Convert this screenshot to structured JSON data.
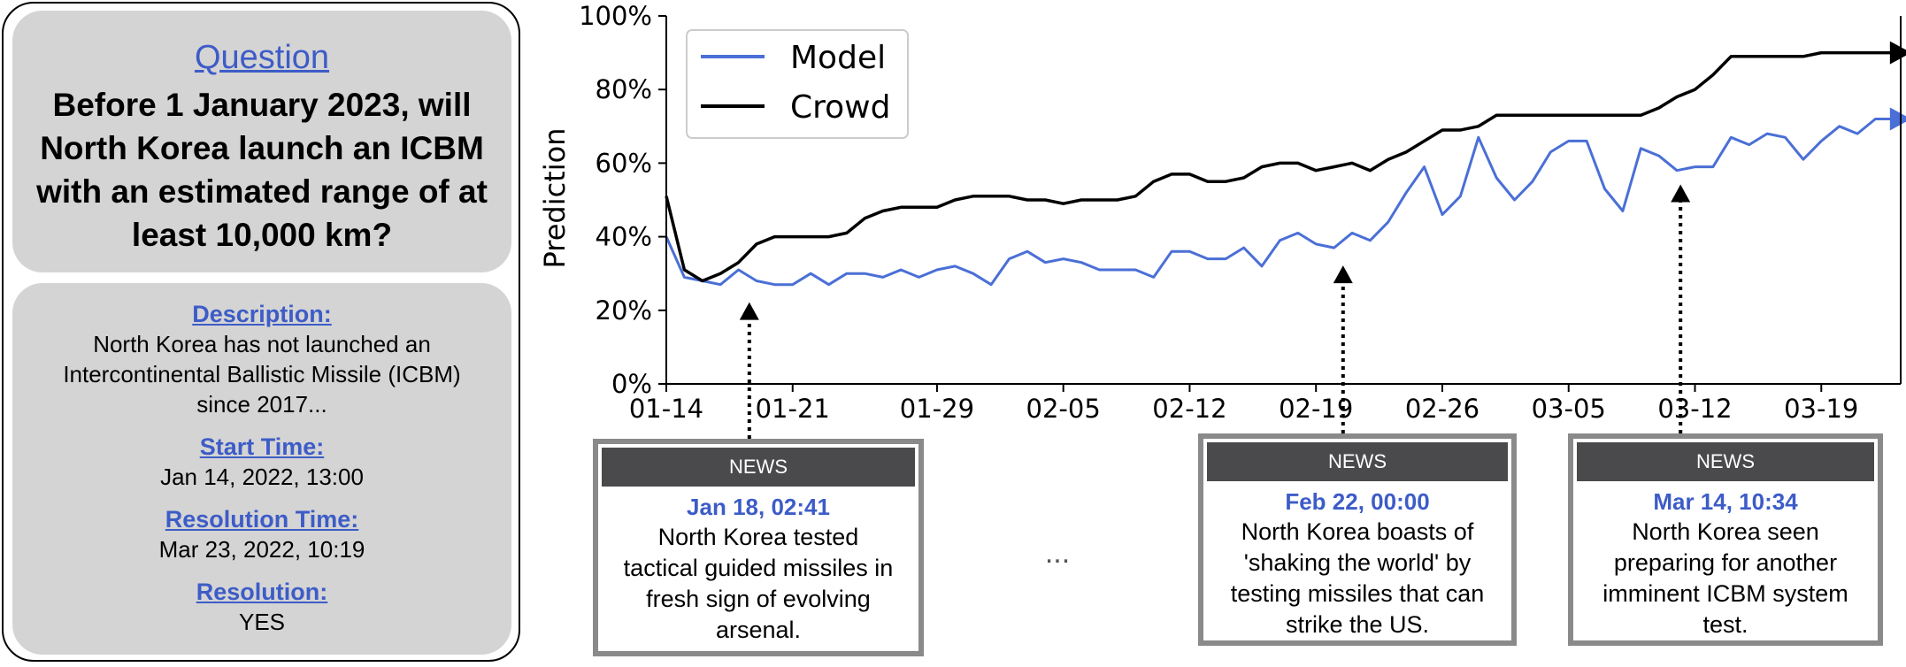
{
  "question": {
    "heading": "Question",
    "text": "Before 1 January 2023, will North Korea launch an ICBM with an estimated range of at least 10,000 km?"
  },
  "details": {
    "description_label": "Description:",
    "description": "North Korea has not launched an Intercontinental Ballistic Missile (ICBM) since 2017...",
    "start_label": "Start Time:",
    "start": "Jan 14, 2022, 13:00",
    "resolution_time_label": "Resolution Time:",
    "resolution_time": "Mar 23, 2022, 10:19",
    "resolution_label": "Resolution:",
    "resolution": "YES"
  },
  "news": [
    {
      "header": "NEWS",
      "time": "Jan 18, 02:41",
      "headline": "North Korea tested tactical guided missiles in fresh sign of evolving arsenal."
    },
    {
      "header": "NEWS",
      "time": "Feb 22, 00:00",
      "headline": "North Korea boasts of 'shaking the world' by testing missiles that can strike the US."
    },
    {
      "header": "NEWS",
      "time": "Mar 14, 10:34",
      "headline": "North Korea seen preparing for another imminent ICBM system test."
    }
  ],
  "news_ellipsis": "...",
  "chart_data": {
    "type": "line",
    "ylabel": "Prediction",
    "xlabel": "",
    "x_ticks": [
      "01-14",
      "01-21",
      "01-29",
      "02-05",
      "02-12",
      "02-19",
      "02-26",
      "03-05",
      "03-12",
      "03-19"
    ],
    "x_tick_days": [
      0,
      7,
      15,
      22,
      29,
      36,
      43,
      50,
      57,
      64
    ],
    "y_ticks": [
      "0%",
      "20%",
      "40%",
      "60%",
      "80%",
      "100%"
    ],
    "ylim": [
      0,
      100
    ],
    "xlim_days": [
      0,
      68.4
    ],
    "legend_position": "top-left",
    "news_marker_days": [
      4.6,
      37.5,
      56.2
    ],
    "series": [
      {
        "name": "Model",
        "color": "#4a6fd6",
        "x": [
          0,
          1,
          2,
          3,
          4,
          5,
          6,
          7,
          8,
          9,
          10,
          11,
          12,
          13,
          14,
          15,
          16,
          17,
          18,
          19,
          20,
          21,
          22,
          23,
          24,
          25,
          26,
          27,
          28,
          29,
          30,
          31,
          32,
          33,
          34,
          35,
          36,
          37,
          38,
          39,
          40,
          41,
          42,
          43,
          44,
          45,
          46,
          47,
          48,
          49,
          50,
          51,
          52,
          53,
          54,
          55,
          56,
          57,
          58,
          59,
          60,
          61,
          62,
          63,
          64,
          65,
          66,
          67,
          68
        ],
        "y": [
          40,
          29,
          28,
          27,
          31,
          28,
          27,
          27,
          30,
          27,
          30,
          30,
          29,
          31,
          29,
          31,
          32,
          30,
          27,
          34,
          36,
          33,
          34,
          33,
          31,
          31,
          31,
          29,
          36,
          36,
          34,
          34,
          37,
          32,
          39,
          41,
          38,
          37,
          41,
          39,
          44,
          52,
          59,
          46,
          51,
          67,
          56,
          50,
          55,
          63,
          66,
          66,
          53,
          47,
          64,
          62,
          58,
          59,
          59,
          67,
          65,
          68,
          67,
          61,
          66,
          70,
          68,
          72,
          72
        ]
      },
      {
        "name": "Crowd",
        "color": "#000000",
        "x": [
          0,
          1,
          2,
          3,
          4,
          5,
          6,
          7,
          8,
          9,
          10,
          11,
          12,
          13,
          14,
          15,
          16,
          17,
          18,
          19,
          20,
          21,
          22,
          23,
          24,
          25,
          26,
          27,
          28,
          29,
          30,
          31,
          32,
          33,
          34,
          35,
          36,
          37,
          38,
          39,
          40,
          41,
          42,
          43,
          44,
          45,
          46,
          47,
          48,
          49,
          50,
          51,
          52,
          53,
          54,
          55,
          56,
          57,
          58,
          59,
          60,
          61,
          62,
          63,
          64,
          65,
          66,
          67,
          68
        ],
        "y": [
          51,
          31,
          28,
          30,
          33,
          38,
          40,
          40,
          40,
          40,
          41,
          45,
          47,
          48,
          48,
          48,
          50,
          51,
          51,
          51,
          50,
          50,
          49,
          50,
          50,
          50,
          51,
          55,
          57,
          57,
          55,
          55,
          56,
          59,
          60,
          60,
          58,
          59,
          60,
          58,
          61,
          63,
          66,
          69,
          69,
          70,
          73,
          73,
          73,
          73,
          73,
          73,
          73,
          73,
          73,
          75,
          78,
          80,
          84,
          89,
          89,
          89,
          89,
          89,
          90,
          90,
          90,
          90,
          90
        ]
      }
    ]
  }
}
